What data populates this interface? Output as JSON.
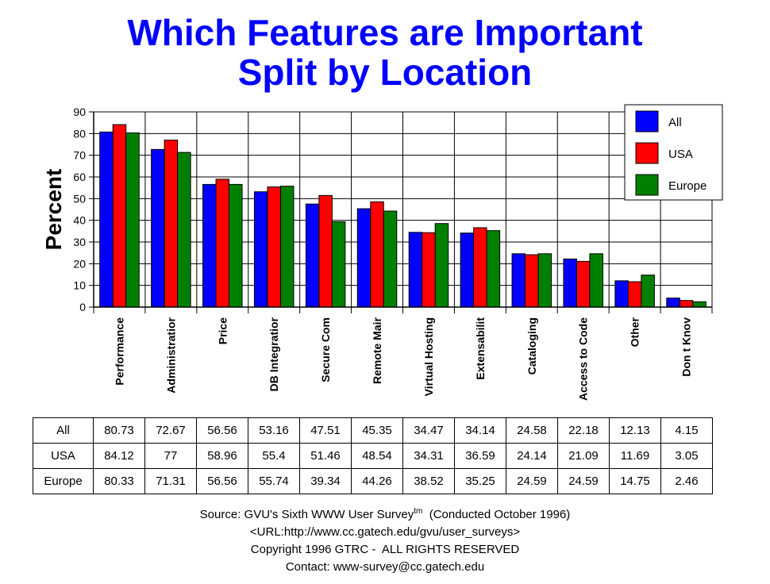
{
  "title_line1": "Which Features are Important",
  "title_line2": "Split by Location",
  "chart_data": {
    "type": "bar",
    "title": "Which Features are Important Split by Location",
    "ylabel": "Percent",
    "xlabel": "",
    "ylim": [
      0,
      90
    ],
    "yticks": [
      0,
      10,
      20,
      30,
      40,
      50,
      60,
      70,
      80,
      90
    ],
    "grid": true,
    "legend": "top-right",
    "categories": [
      "Performance",
      "Administratior",
      "Price",
      "DB Integratior",
      "Secure Com",
      "Remote Mair",
      "Virtual Hosting",
      "Extensability",
      "Cataloging",
      "Access to Code",
      "Other",
      "Don't Know"
    ],
    "category_labels_shown": [
      "Performance",
      "Administratior",
      "Price",
      "DB Integratior",
      "Secure Com",
      "Remote Mair",
      "Virtual Hosting",
      "Extensabilit",
      "Cataloging",
      "Access to Code",
      "Other",
      "Don t Knov"
    ],
    "series": [
      {
        "name": "All",
        "color": "#0000ff",
        "values": [
          80.73,
          72.67,
          56.56,
          53.16,
          47.51,
          45.35,
          34.47,
          34.14,
          24.58,
          22.18,
          12.13,
          4.15
        ],
        "labels": [
          "80.73",
          "72.67",
          "56.56",
          "53.16",
          "47.51",
          "45.35",
          "34.47",
          "34.14",
          "24.58",
          "22.18",
          "12.13",
          "4.15"
        ]
      },
      {
        "name": "USA",
        "color": "#ff0000",
        "values": [
          84.12,
          77,
          58.96,
          55.4,
          51.46,
          48.54,
          34.31,
          36.59,
          24.14,
          21.09,
          11.69,
          3.05
        ],
        "labels": [
          "84.12",
          "77",
          "58.96",
          "55.4",
          "51.46",
          "48.54",
          "34.31",
          "36.59",
          "24.14",
          "21.09",
          "11.69",
          "3.05"
        ]
      },
      {
        "name": "Europe",
        "color": "#008000",
        "values": [
          80.33,
          71.31,
          56.56,
          55.74,
          39.34,
          44.26,
          38.52,
          35.25,
          24.59,
          24.59,
          14.75,
          2.46
        ],
        "labels": [
          "80.33",
          "71.31",
          "56.56",
          "55.74",
          "39.34",
          "44.26",
          "38.52",
          "35.25",
          "24.59",
          "24.59",
          "14.75",
          "2.46"
        ]
      }
    ]
  },
  "source": {
    "line1_prefix": "Source: GVU's Sixth WWW User Survey",
    "line1_sup": "tm",
    "line1_suffix": "  (Conducted October 1996)",
    "line2": "<URL:http://www.cc.gatech.edu/gvu/user_surveys>",
    "line3": "Copyright 1996 GTRC -  ALL RIGHTS RESERVED",
    "line4": "Contact: www-survey@cc.gatech.edu"
  }
}
